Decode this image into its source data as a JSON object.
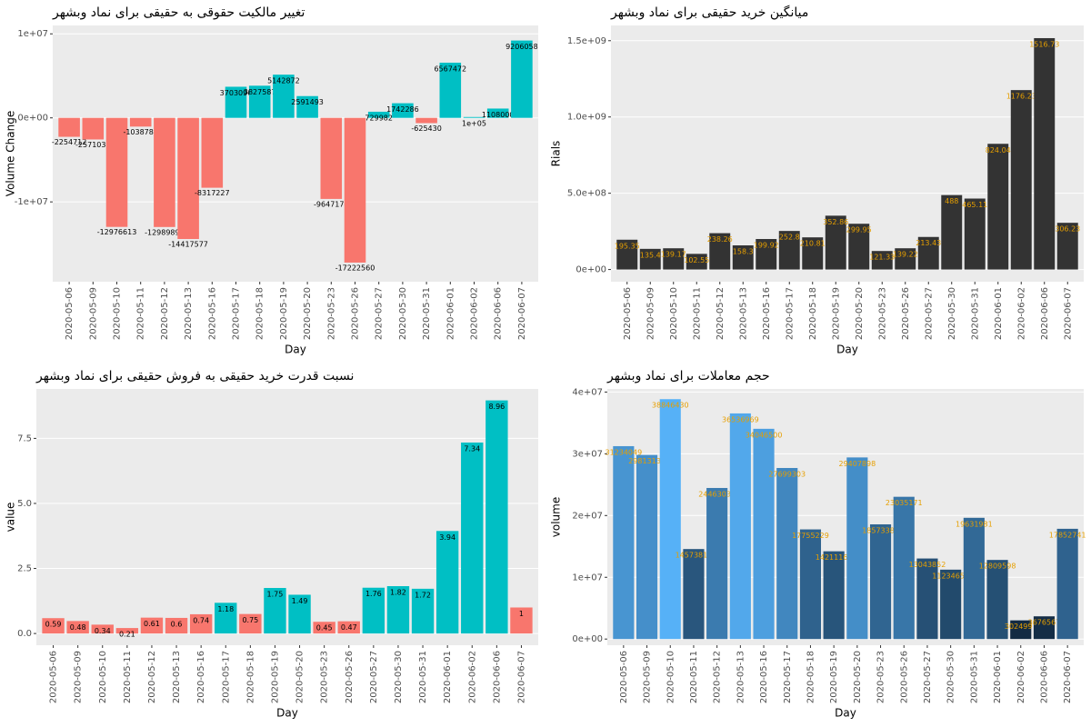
{
  "chart_data": [
    {
      "type": "bar",
      "title": "تغییر مالکیت حقوقی به حقیقی برای نماد وبشهر",
      "x_label": "Day",
      "y_label": "Volume Change",
      "categories": [
        "2020-05-06",
        "2020-05-09",
        "2020-05-10",
        "2020-05-11",
        "2020-05-12",
        "2020-05-13",
        "2020-05-16",
        "2020-05-17",
        "2020-05-18",
        "2020-05-19",
        "2020-05-20",
        "2020-05-23",
        "2020-05-26",
        "2020-05-27",
        "2020-05-30",
        "2020-05-31",
        "2020-06-01",
        "2020-06-02",
        "2020-06-06",
        "2020-06-07"
      ],
      "values": [
        -2254712,
        -2571032,
        -12976613,
        -1038789,
        -12989891,
        -14417577,
        -8317227,
        3703090,
        3827587,
        5142872,
        2591493,
        -9647174,
        -17222560,
        729982,
        1742286,
        -625430,
        6567472,
        100000,
        1108000,
        9206058
      ],
      "value_labels": [
        "-2254712",
        "-2571032",
        "-12976613",
        "-1038789",
        "-12989891",
        "-14417577",
        "-8317227",
        "3703090",
        "3827587",
        "5142872",
        "2591493",
        "-9647174",
        "-17222560",
        "729982",
        "1742286",
        "-625430",
        "6567472",
        "1e+05",
        "1108000",
        "9206058"
      ],
      "colors": [
        "#F8766D",
        "#F8766D",
        "#F8766D",
        "#F8766D",
        "#F8766D",
        "#F8766D",
        "#F8766D",
        "#00BFC4",
        "#00BFC4",
        "#00BFC4",
        "#00BFC4",
        "#F8766D",
        "#F8766D",
        "#00BFC4",
        "#00BFC4",
        "#F8766D",
        "#00BFC4",
        "#00BFC4",
        "#00BFC4",
        "#00BFC4"
      ],
      "label_color": "#000000",
      "ylim": [
        -19500000,
        11000000
      ],
      "yticks": [
        {
          "value": -10000000,
          "label": "-1e+07"
        },
        {
          "value": 0,
          "label": "0e+00"
        },
        {
          "value": 10000000,
          "label": "1e+07"
        }
      ],
      "grid": true
    },
    {
      "type": "bar",
      "title": "میانگین خرید حقیقی برای نماد وبشهر",
      "x_label": "Day",
      "y_label": "Rials",
      "categories": [
        "2020-05-06",
        "2020-05-09",
        "2020-05-10",
        "2020-05-11",
        "2020-05-12",
        "2020-05-13",
        "2020-05-16",
        "2020-05-17",
        "2020-05-18",
        "2020-05-19",
        "2020-05-20",
        "2020-05-23",
        "2020-05-26",
        "2020-05-27",
        "2020-05-30",
        "2020-05-31",
        "2020-06-01",
        "2020-06-02",
        "2020-06-06",
        "2020-06-07"
      ],
      "values": [
        195350000,
        135400000,
        139170000,
        102550000,
        238260000,
        158300000,
        199920000,
        252800000,
        210810000,
        352860000,
        299950000,
        121330000,
        139220000,
        213430000,
        488000000,
        465110000,
        824040000,
        1176230000,
        1516730000,
        306230000
      ],
      "value_labels": [
        "195.35",
        "135.4",
        "139.17",
        "102.55",
        "238.26",
        "158.3",
        "199.92",
        "252.8",
        "210.81",
        "352.86",
        "299.95",
        "121.33",
        "139.22",
        "213.43",
        "488",
        "465.11",
        "824.04",
        "1176.23",
        "1516.73",
        "306.23"
      ],
      "color": "#333333",
      "label_color": "#E69F00",
      "ylim": [
        -80000000,
        1600000000
      ],
      "yticks": [
        {
          "value": 0,
          "label": "0e+00"
        },
        {
          "value": 500000000,
          "label": "5.0e+08"
        },
        {
          "value": 1000000000,
          "label": "1.0e+09"
        },
        {
          "value": 1500000000,
          "label": "1.5e+09"
        }
      ],
      "grid": true
    },
    {
      "type": "bar",
      "title": "نسبت قدرت خرید حقیقی به فروش حقیقی برای نماد وبشهر",
      "x_label": "Day",
      "y_label": "value",
      "categories": [
        "2020-05-06",
        "2020-05-09",
        "2020-05-10",
        "2020-05-11",
        "2020-05-12",
        "2020-05-13",
        "2020-05-16",
        "2020-05-17",
        "2020-05-18",
        "2020-05-19",
        "2020-05-20",
        "2020-05-23",
        "2020-05-26",
        "2020-05-27",
        "2020-05-30",
        "2020-05-31",
        "2020-06-01",
        "2020-06-02",
        "2020-06-06",
        "2020-06-07"
      ],
      "values": [
        0.59,
        0.48,
        0.34,
        0.21,
        0.61,
        0.6,
        0.74,
        1.18,
        0.75,
        1.75,
        1.49,
        0.45,
        0.47,
        1.76,
        1.82,
        1.72,
        3.94,
        7.34,
        8.96,
        1
      ],
      "colors": [
        "#F8766D",
        "#F8766D",
        "#F8766D",
        "#F8766D",
        "#F8766D",
        "#F8766D",
        "#F8766D",
        "#00BFC4",
        "#F8766D",
        "#00BFC4",
        "#00BFC4",
        "#F8766D",
        "#F8766D",
        "#00BFC4",
        "#00BFC4",
        "#00BFC4",
        "#00BFC4",
        "#00BFC4",
        "#00BFC4",
        "#F8766D"
      ],
      "label_color": "#000000",
      "ylim": [
        -0.45,
        9.4
      ],
      "yticks": [
        {
          "value": 0,
          "label": "0.0"
        },
        {
          "value": 2.5,
          "label": "2.5"
        },
        {
          "value": 5,
          "label": "5.0"
        },
        {
          "value": 7.5,
          "label": "7.5"
        }
      ],
      "grid": true
    },
    {
      "type": "bar",
      "title": "حجم معاملات برای نماد وبشهر",
      "x_label": "Day",
      "y_label": "volume",
      "categories": [
        "2020-05-06",
        "2020-05-09",
        "2020-05-10",
        "2020-05-11",
        "2020-05-12",
        "2020-05-13",
        "2020-05-16",
        "2020-05-17",
        "2020-05-18",
        "2020-05-19",
        "2020-05-20",
        "2020-05-23",
        "2020-05-26",
        "2020-05-27",
        "2020-05-30",
        "2020-05-31",
        "2020-06-01",
        "2020-06-02",
        "2020-06-06",
        "2020-06-07"
      ],
      "values": [
        31234049,
        29813131,
        38846430,
        14573810,
        24463030,
        36536969,
        34046500,
        27699303,
        17755229,
        14211160,
        29407898,
        18573381,
        23035171,
        13043852,
        11234657,
        19631981,
        12809598,
        3024997,
        3676567,
        17852741
      ],
      "color_low": "#132B43",
      "color_high": "#56B1F7",
      "label_color": "#E69F00",
      "ylim": [
        -1000000,
        40500000
      ],
      "yticks": [
        {
          "value": 0,
          "label": "0e+00"
        },
        {
          "value": 10000000,
          "label": "1e+07"
        },
        {
          "value": 20000000,
          "label": "2e+07"
        },
        {
          "value": 30000000,
          "label": "3e+07"
        },
        {
          "value": 40000000,
          "label": "4e+07"
        }
      ],
      "grid": true
    }
  ]
}
